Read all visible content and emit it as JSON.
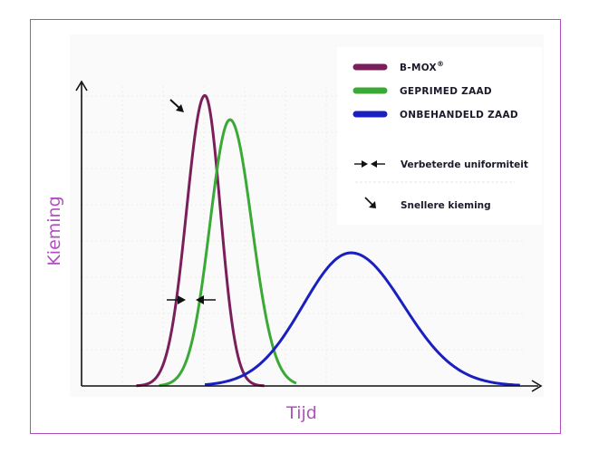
{
  "chart_data": {
    "type": "line",
    "title": "",
    "xlabel": "Tijd",
    "ylabel": "Kieming",
    "x_domain": [
      0,
      100
    ],
    "y_domain": [
      0,
      100
    ],
    "grid": true,
    "legend_position": "top-right",
    "series": [
      {
        "name": "B-MOX",
        "name_suffix": "®",
        "color": "#7b1f5c",
        "peak_x": 27,
        "peak_y": 96,
        "left_width": 4.0,
        "right_width": 3.4,
        "start_x": 12,
        "end_x": 40
      },
      {
        "name": "GEPRIMED ZAAD",
        "color": "#3aa935",
        "peak_x": 32.5,
        "peak_y": 88,
        "left_width": 4.4,
        "right_width": 4.8,
        "start_x": 17,
        "end_x": 47
      },
      {
        "name": "ONBEHANDELD ZAAD",
        "color": "#1a1fbf",
        "peak_x": 59,
        "peak_y": 44,
        "left_width": 10.5,
        "right_width": 11.5,
        "start_x": 27,
        "end_x": 96
      }
    ],
    "annotations": [
      {
        "label": "Verbeterde uniformiteit",
        "icon": "arrows-inward-icon"
      },
      {
        "label": "Snellere kieming",
        "icon": "arrow-down-right-icon"
      }
    ]
  }
}
